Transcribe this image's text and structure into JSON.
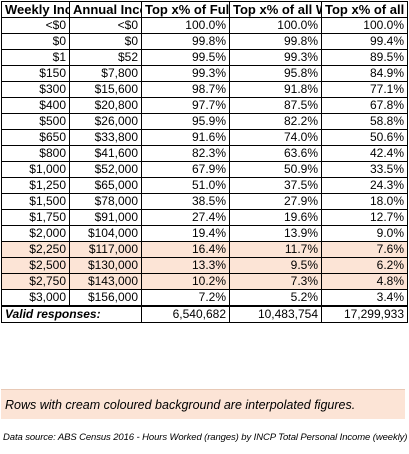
{
  "headers": [
    "Weekly Income",
    "Annual Income",
    "Top x% of Full-time Workers",
    "Top x% of all Workers",
    "Top x% of all Australians"
  ],
  "rows": [
    {
      "weekly": "<$0",
      "annual": "<$0",
      "full_time": "100.0%",
      "all_workers": "100.0%",
      "all_australians": "100.0%",
      "interpolated": false
    },
    {
      "weekly": "$0",
      "annual": "$0",
      "full_time": "99.8%",
      "all_workers": "99.8%",
      "all_australians": "99.4%",
      "interpolated": false
    },
    {
      "weekly": "$1",
      "annual": "$52",
      "full_time": "99.5%",
      "all_workers": "99.3%",
      "all_australians": "89.5%",
      "interpolated": false
    },
    {
      "weekly": "$150",
      "annual": "$7,800",
      "full_time": "99.3%",
      "all_workers": "95.8%",
      "all_australians": "84.9%",
      "interpolated": false
    },
    {
      "weekly": "$300",
      "annual": "$15,600",
      "full_time": "98.7%",
      "all_workers": "91.8%",
      "all_australians": "77.1%",
      "interpolated": false
    },
    {
      "weekly": "$400",
      "annual": "$20,800",
      "full_time": "97.7%",
      "all_workers": "87.5%",
      "all_australians": "67.8%",
      "interpolated": false
    },
    {
      "weekly": "$500",
      "annual": "$26,000",
      "full_time": "95.9%",
      "all_workers": "82.2%",
      "all_australians": "58.8%",
      "interpolated": false
    },
    {
      "weekly": "$650",
      "annual": "$33,800",
      "full_time": "91.6%",
      "all_workers": "74.0%",
      "all_australians": "50.6%",
      "interpolated": false
    },
    {
      "weekly": "$800",
      "annual": "$41,600",
      "full_time": "82.3%",
      "all_workers": "63.6%",
      "all_australians": "42.4%",
      "interpolated": false
    },
    {
      "weekly": "$1,000",
      "annual": "$52,000",
      "full_time": "67.9%",
      "all_workers": "50.9%",
      "all_australians": "33.5%",
      "interpolated": false
    },
    {
      "weekly": "$1,250",
      "annual": "$65,000",
      "full_time": "51.0%",
      "all_workers": "37.5%",
      "all_australians": "24.3%",
      "interpolated": false
    },
    {
      "weekly": "$1,500",
      "annual": "$78,000",
      "full_time": "38.5%",
      "all_workers": "27.9%",
      "all_australians": "18.0%",
      "interpolated": false
    },
    {
      "weekly": "$1,750",
      "annual": "$91,000",
      "full_time": "27.4%",
      "all_workers": "19.6%",
      "all_australians": "12.7%",
      "interpolated": false
    },
    {
      "weekly": "$2,000",
      "annual": "$104,000",
      "full_time": "19.4%",
      "all_workers": "13.9%",
      "all_australians": "9.0%",
      "interpolated": false
    },
    {
      "weekly": "$2,250",
      "annual": "$117,000",
      "full_time": "16.4%",
      "all_workers": "11.7%",
      "all_australians": "7.6%",
      "interpolated": true
    },
    {
      "weekly": "$2,500",
      "annual": "$130,000",
      "full_time": "13.3%",
      "all_workers": "9.5%",
      "all_australians": "6.2%",
      "interpolated": true
    },
    {
      "weekly": "$2,750",
      "annual": "$143,000",
      "full_time": "10.2%",
      "all_workers": "7.3%",
      "all_australians": "4.8%",
      "interpolated": true
    },
    {
      "weekly": "$3,000",
      "annual": "$156,000",
      "full_time": "7.2%",
      "all_workers": "5.2%",
      "all_australians": "3.4%",
      "interpolated": false
    }
  ],
  "valid_responses": {
    "label": "Valid responses:",
    "full_time": "6,540,682",
    "all_workers": "10,483,754",
    "all_australians": "17,299,933"
  },
  "note": "Rows with cream coloured background are interpolated figures.",
  "source": "Data source: ABS Census 2016 - Hours Worked (ranges) by INCP Total Personal Income (weekly)",
  "colors": {
    "interpolated_background": "#fce4d6",
    "border": "#000000"
  }
}
